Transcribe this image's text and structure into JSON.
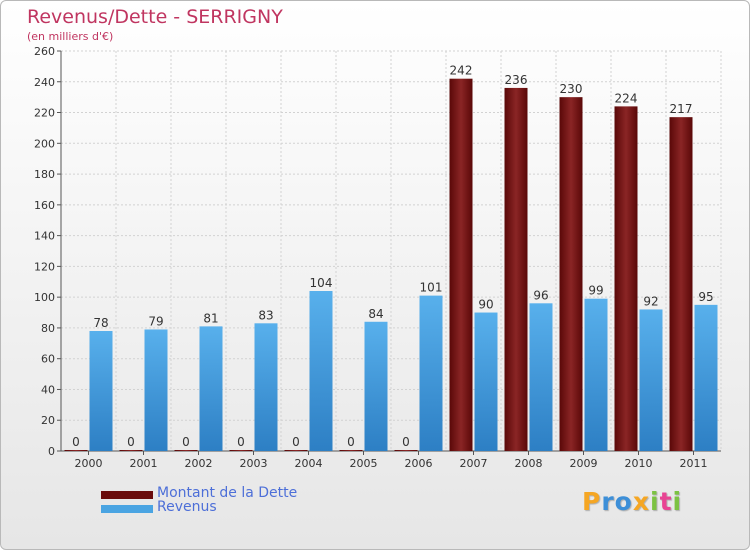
{
  "colors": {
    "dette": "#7a1111",
    "dette_dark": "#5a0808",
    "revenus": "#4aa4e2",
    "revenus_dark": "#2f86cc",
    "title": "#c03560",
    "legend_text": "#4d6fd8",
    "axis": "#555555",
    "grid": "#cccccc"
  },
  "logo": {
    "text": "Proxiti",
    "letters": [
      {
        "ch": "P",
        "color": "#f5a623"
      },
      {
        "ch": "r",
        "color": "#3d8fd8"
      },
      {
        "ch": "o",
        "color": "#3d8fd8"
      },
      {
        "ch": "x",
        "color": "#f5a623"
      },
      {
        "ch": "i",
        "color": "#7cc242"
      },
      {
        "ch": "t",
        "color": "#e84393"
      },
      {
        "ch": "i",
        "color": "#7cc242"
      }
    ]
  },
  "chart_data": {
    "type": "bar",
    "title": "Revenus/Dette - SERRIGNY",
    "subtitle": "(en milliers d'€)",
    "xlabel": "",
    "ylabel": "",
    "ylim": [
      0,
      260
    ],
    "yticks": [
      0,
      20,
      40,
      60,
      80,
      100,
      120,
      140,
      160,
      180,
      200,
      220,
      240,
      260
    ],
    "grid": true,
    "legend_position": "bottom-left",
    "categories": [
      "2000",
      "2001",
      "2002",
      "2003",
      "2004",
      "2005",
      "2006",
      "2007",
      "2008",
      "2009",
      "2010",
      "2011"
    ],
    "series": [
      {
        "name": "Montant de la Dette",
        "color": "#7a1111",
        "values": [
          0,
          0,
          0,
          0,
          0,
          0,
          0,
          242,
          236,
          230,
          224,
          217
        ]
      },
      {
        "name": "Revenus",
        "color": "#4aa4e2",
        "values": [
          78,
          79,
          81,
          83,
          104,
          84,
          101,
          90,
          96,
          99,
          92,
          95
        ]
      }
    ]
  }
}
